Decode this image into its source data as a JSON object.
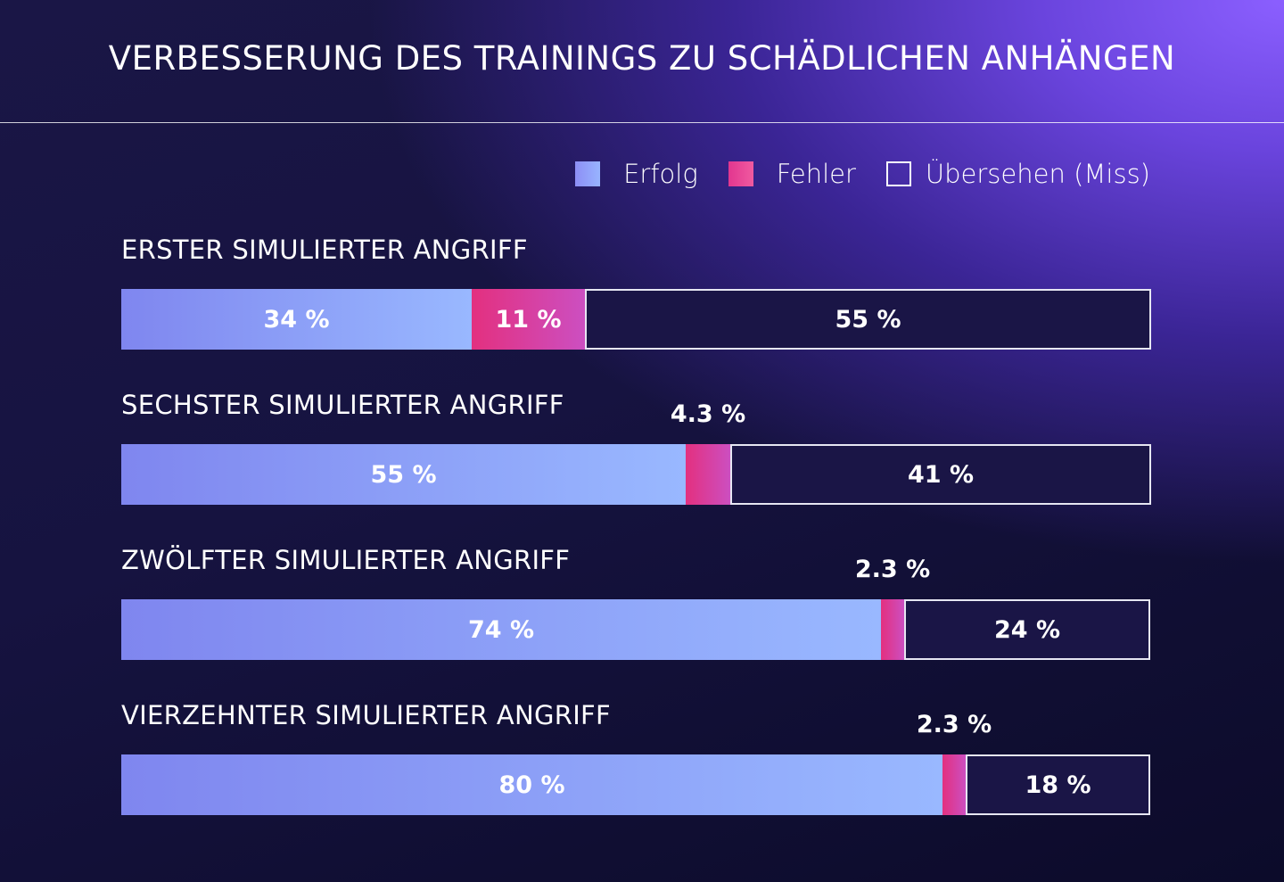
{
  "chart_data": {
    "type": "bar",
    "stacked": true,
    "orientation": "horizontal",
    "title": "VERBESSERUNG DES TRAININGS ZU SCHÄDLICHEN ANHÄNGEN",
    "legend": [
      {
        "key": "success",
        "label": "Erfolg",
        "color": "#8f9cf8"
      },
      {
        "key": "error",
        "label": "Fehler",
        "color": "#e83f95"
      },
      {
        "key": "miss",
        "label": "Übersehen (Miss)",
        "color": "#ffffff"
      }
    ],
    "categories": [
      "ERSTER SIMULIERTER ANGRIFF",
      "SECHSTER SIMULIERTER ANGRIFF",
      "ZWÖLFTER SIMULIERTER ANGRIFF",
      "VIERZEHNTER SIMULIERTER ANGRIFF"
    ],
    "series": [
      {
        "name": "Erfolg",
        "values": [
          34,
          55,
          74,
          80
        ],
        "labels": [
          "34 %",
          "55 %",
          "74 %",
          "80 %"
        ]
      },
      {
        "name": "Fehler",
        "values": [
          11,
          4.3,
          2.3,
          2.3
        ],
        "labels": [
          "11 %",
          "4.3 %",
          "2.3 %",
          "2.3 %"
        ]
      },
      {
        "name": "Übersehen (Miss)",
        "values": [
          55,
          41,
          24,
          18
        ],
        "labels": [
          "55 %",
          "41 %",
          "24 %",
          "18 %"
        ]
      }
    ],
    "xlim": [
      0,
      100
    ],
    "legend_position": "top-right"
  }
}
